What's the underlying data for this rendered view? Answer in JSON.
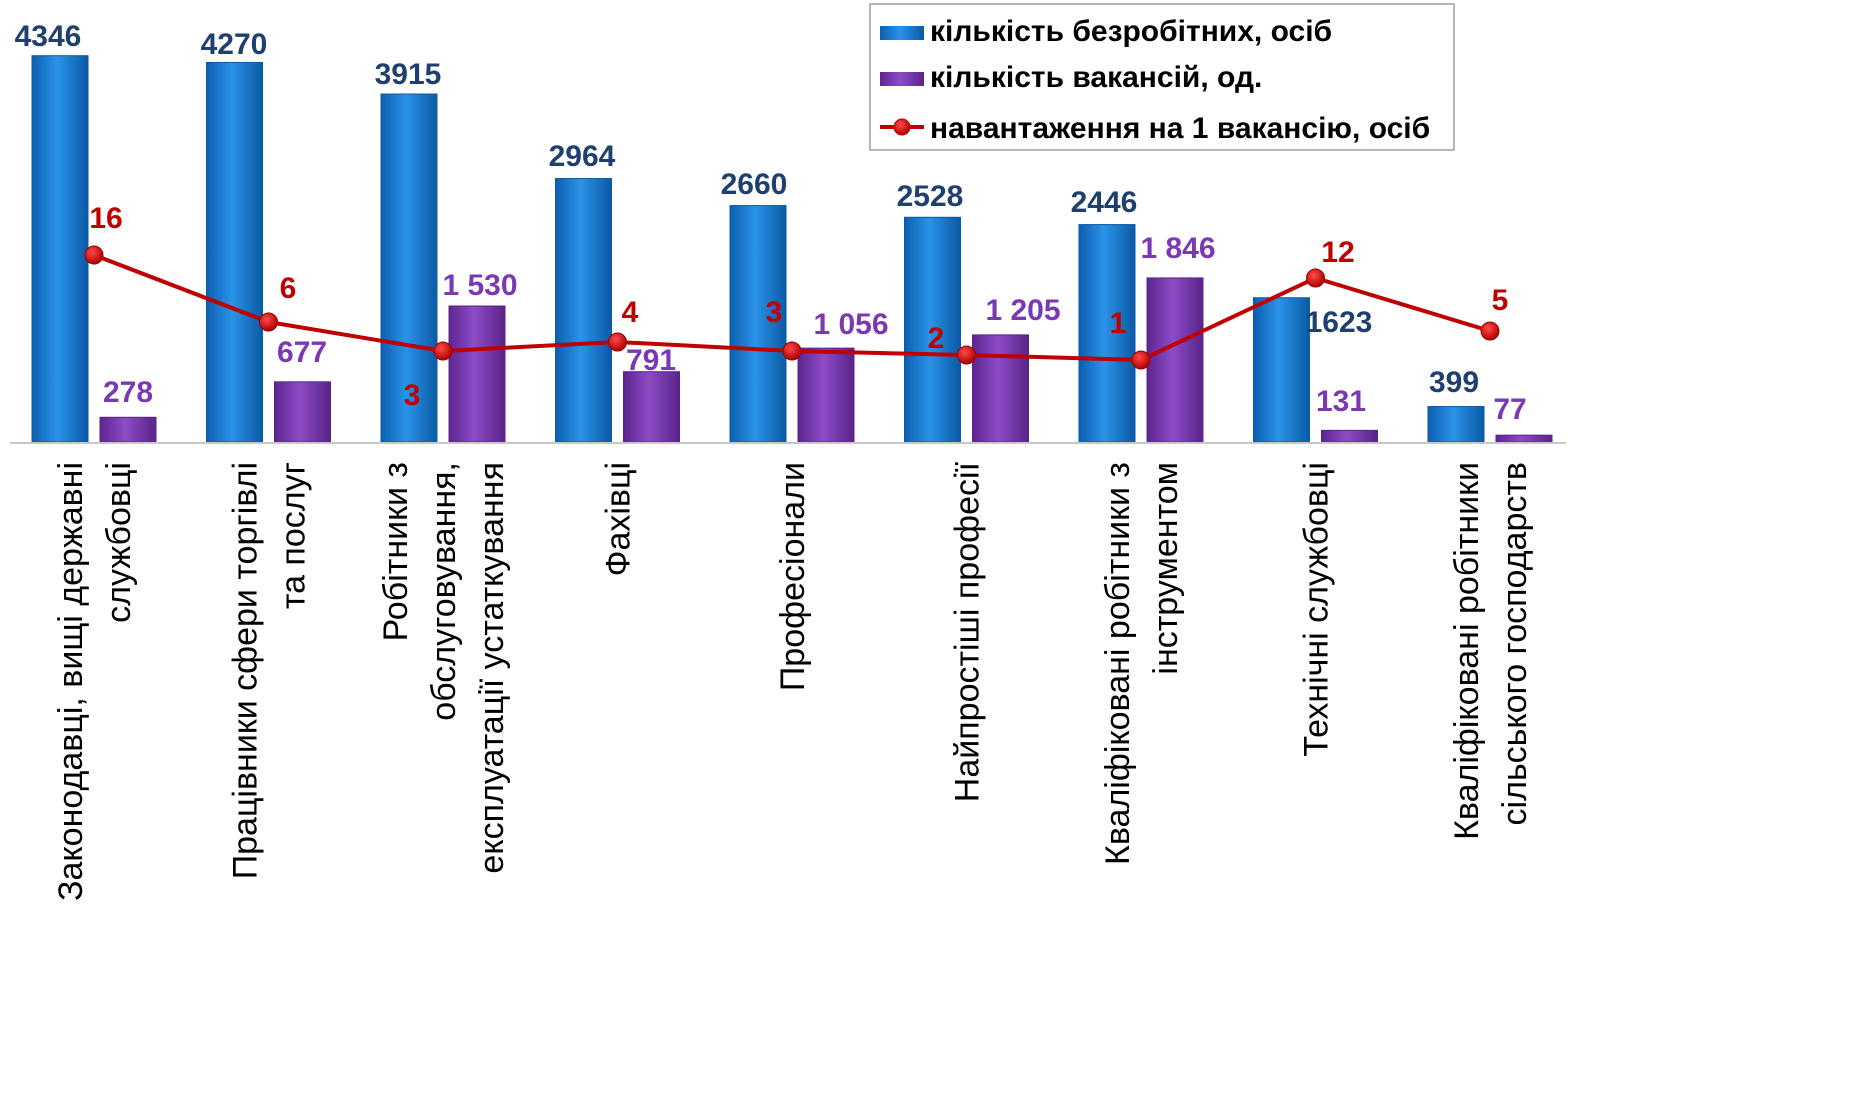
{
  "chart_data": {
    "type": "bar",
    "categories": [
      [
        "Законодавці,  вищі державні",
        "службовці"
      ],
      [
        "Працівники сфери торгівлі",
        "та послуг"
      ],
      [
        "Робітники з",
        "обслуговування,",
        "експлуатації   устаткування"
      ],
      [
        "Фахівці"
      ],
      [
        "Професіонали"
      ],
      [
        "Найпростіші професії"
      ],
      [
        "Кваліфіковані робітники з",
        "інструментом"
      ],
      [
        "Технічні службовці"
      ],
      [
        "Кваліфіковані робітники",
        "сільського господарств"
      ]
    ],
    "series": [
      {
        "name": "кількість безробітних, осіб",
        "type": "bar",
        "color": "#1e7fd6",
        "label_color": "#1f3f6e",
        "values": [
          4346,
          4270,
          3915,
          2964,
          2660,
          2528,
          2446,
          1623,
          399
        ],
        "labels": [
          "4346",
          "4270",
          "3915",
          "2964",
          "2660",
          "2528",
          "2446",
          "1623",
          "399"
        ]
      },
      {
        "name": "кількість вакансій, од.",
        "type": "bar",
        "color": "#7a38b4",
        "label_color": "#7a38b4",
        "values": [
          278,
          677,
          1530,
          791,
          1056,
          1205,
          1846,
          131,
          77
        ],
        "labels": [
          "278",
          "677",
          "1 530",
          "791",
          "1 056",
          "1 205",
          "1 846",
          "131",
          "77"
        ]
      },
      {
        "name": "навантаження на 1 вакансію, осіб",
        "type": "line",
        "color": "#c00000",
        "label_color": "#c00000",
        "values": [
          16,
          6,
          3,
          4,
          3,
          2,
          1,
          12,
          5
        ],
        "labels": [
          "16",
          "6",
          "3",
          "4",
          "3",
          "2",
          "1",
          "12",
          "5"
        ]
      }
    ],
    "ylim": [
      0,
      4500
    ],
    "grid": false,
    "legend": "top-right"
  }
}
